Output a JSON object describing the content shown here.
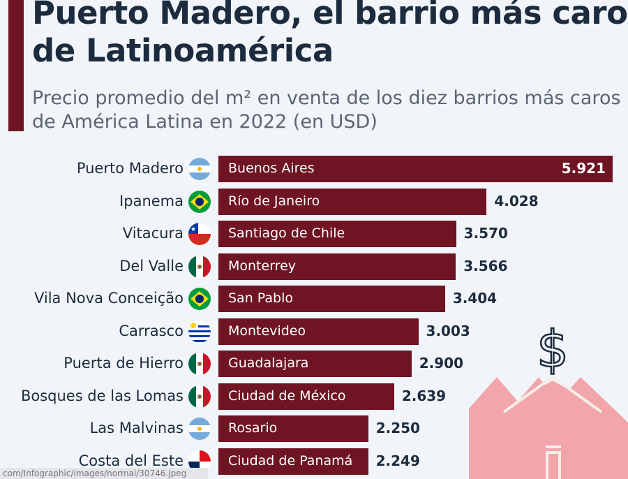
{
  "chart_data": {
    "type": "bar",
    "orientation": "horizontal",
    "title": "Puerto Madero, el barrio más caro de Latinoamérica",
    "subtitle": "Precio promedio del m² en venta de los diez barrios más caros de América Latina en 2022 (en USD)",
    "categories": [
      "Puerto Madero",
      "Ipanema",
      "Vitacura",
      "Del Valle",
      "Vila Nova Conceição",
      "Carrasco",
      "Puerta de Hierro",
      "Bosques de las Lomas",
      "Las Malvinas",
      "Costa del Este"
    ],
    "cities": [
      "Buenos Aires",
      "Río de Janeiro",
      "Santiago de Chile",
      "Monterrey",
      "San Pablo",
      "Montevideo",
      "Guadalajara",
      "Ciudad de México",
      "Rosario",
      "Ciudad de Panamá"
    ],
    "flags": [
      "argentina",
      "brazil",
      "chile",
      "mexico",
      "brazil",
      "uruguay",
      "mexico",
      "mexico",
      "argentina",
      "panama"
    ],
    "values": [
      5921,
      4028,
      3570,
      3566,
      3404,
      3003,
      2900,
      2639,
      2250,
      2249
    ],
    "value_labels": [
      "5.921",
      "4.028",
      "3.570",
      "3.566",
      "3.404",
      "3.003",
      "2.900",
      "2.639",
      "2.250",
      "2.249"
    ],
    "bar_color": "#6e1423"
  },
  "status_text": "com/Infographic/images/normal/30746.jpeg"
}
